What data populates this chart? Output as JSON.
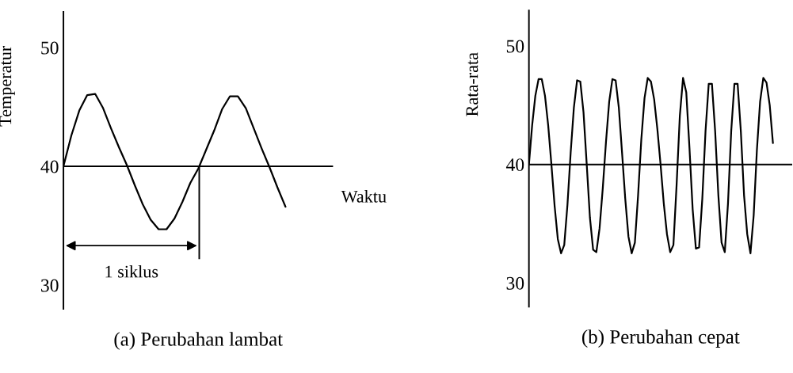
{
  "chart_data": [
    {
      "type": "line",
      "title": "(a) Perubahan lambat",
      "ylabel": "Temperatur",
      "xlabel": "Waktu",
      "annotations": [
        "1 siklus"
      ],
      "categories": [
        null,
        null,
        null,
        null,
        null,
        null,
        null,
        null,
        null,
        null,
        null,
        null,
        null,
        null,
        null,
        null,
        null,
        null,
        null,
        null,
        null,
        null,
        null,
        null,
        null,
        null,
        null,
        null,
        null,
        null,
        null,
        null,
        null,
        null,
        null
      ],
      "series": [
        {
          "color": "#000000",
          "values": [
            40.0,
            42.6,
            44.7,
            46.0,
            46.1,
            44.9,
            43.2,
            41.6,
            40.1,
            38.4,
            36.8,
            35.5,
            34.7,
            34.7,
            35.6,
            37.0,
            38.6,
            39.8,
            41.4,
            43.0,
            44.8,
            45.9,
            45.9,
            44.9,
            43.2,
            41.5,
            39.9,
            38.2,
            36.6,
            null,
            null,
            null,
            null,
            null,
            null
          ]
        }
      ],
      "ylim": [
        28,
        53
      ],
      "yticks": [
        30,
        40,
        50
      ],
      "tick_labels": "y",
      "grid": false,
      "legend": false,
      "marker": "none",
      "line_style": "solid",
      "ref_lines": [
        {
          "axis": "y",
          "value": 40,
          "color": "#000000"
        }
      ]
    },
    {
      "type": "line",
      "title": "(b) Perubahan cepat",
      "ylabel": "Rata-rata",
      "categories": [
        null,
        null,
        null,
        null,
        null,
        null,
        null,
        null,
        null,
        null,
        null,
        null,
        null,
        null,
        null,
        null,
        null,
        null,
        null,
        null,
        null,
        null,
        null,
        null,
        null,
        null,
        null,
        null,
        null,
        null,
        null,
        null,
        null,
        null,
        null,
        null,
        null,
        null,
        null,
        null,
        null,
        null,
        null,
        null,
        null,
        null,
        null,
        null,
        null,
        null,
        null,
        null,
        null,
        null,
        null,
        null,
        null,
        null,
        null,
        null,
        null,
        null,
        null,
        null,
        null,
        null,
        null,
        null,
        null,
        null,
        null,
        null,
        null,
        null,
        null,
        null,
        null,
        null,
        null,
        null,
        null,
        null,
        null
      ],
      "series": [
        {
          "color": "#000000",
          "values": [
            40.0,
            43.3,
            45.8,
            47.2,
            47.2,
            45.8,
            43.3,
            40.0,
            36.5,
            33.7,
            32.5,
            33.2,
            36.6,
            41.0,
            44.8,
            47.1,
            47.0,
            44.4,
            40.0,
            35.5,
            32.8,
            32.6,
            34.6,
            38.0,
            41.9,
            45.3,
            47.2,
            47.1,
            44.8,
            41.0,
            37.1,
            33.9,
            32.5,
            33.4,
            37.4,
            42.1,
            45.6,
            47.3,
            47.0,
            45.5,
            43.0,
            40.0,
            36.7,
            34.1,
            32.6,
            33.2,
            38.3,
            44.1,
            47.3,
            46.1,
            41.4,
            36.2,
            32.9,
            33.0,
            37.1,
            42.8,
            46.8,
            46.8,
            42.8,
            37.4,
            33.4,
            32.6,
            36.7,
            42.8,
            46.8,
            46.8,
            42.8,
            37.4,
            34.1,
            32.5,
            35.7,
            41.2,
            45.3,
            47.3,
            46.9,
            45.0,
            41.8,
            null,
            null,
            null,
            null,
            null,
            null
          ]
        }
      ],
      "ylim": [
        28,
        53
      ],
      "yticks": [
        30,
        40,
        50
      ],
      "tick_labels": "y",
      "grid": false,
      "legend": false,
      "marker": "none",
      "line_style": "solid",
      "ref_lines": [
        {
          "axis": "y",
          "value": 40,
          "color": "#000000"
        }
      ]
    }
  ]
}
